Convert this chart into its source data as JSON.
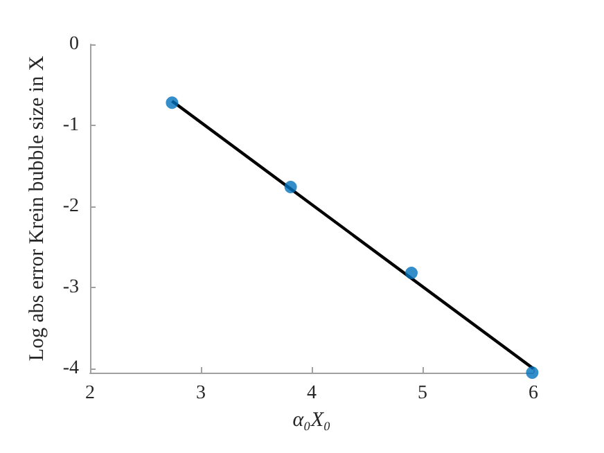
{
  "chart_data": {
    "type": "scatter",
    "xlabel": "α₀X₀",
    "ylabel": "Log abs error Krein bubble size in X",
    "xlim": [
      2,
      6
    ],
    "xticks": [
      2,
      3,
      4,
      5,
      6
    ],
    "ylim": [
      -4.05,
      0
    ],
    "yticks": [
      -4,
      -3,
      -2,
      -1,
      0
    ],
    "grid": false,
    "marker": "circle",
    "series": [
      {
        "color": "#0072bd",
        "x": [
          2.74,
          3.81,
          4.9,
          5.99
        ],
        "values": [
          -0.72,
          -1.76,
          -2.82,
          -4.05
        ]
      },
      {
        "type": "line",
        "color": "#000000",
        "x": [
          2.74,
          6
        ],
        "values": [
          -0.7,
          -4.0
        ],
        "marker": "none",
        "line_style": "solid"
      }
    ]
  }
}
